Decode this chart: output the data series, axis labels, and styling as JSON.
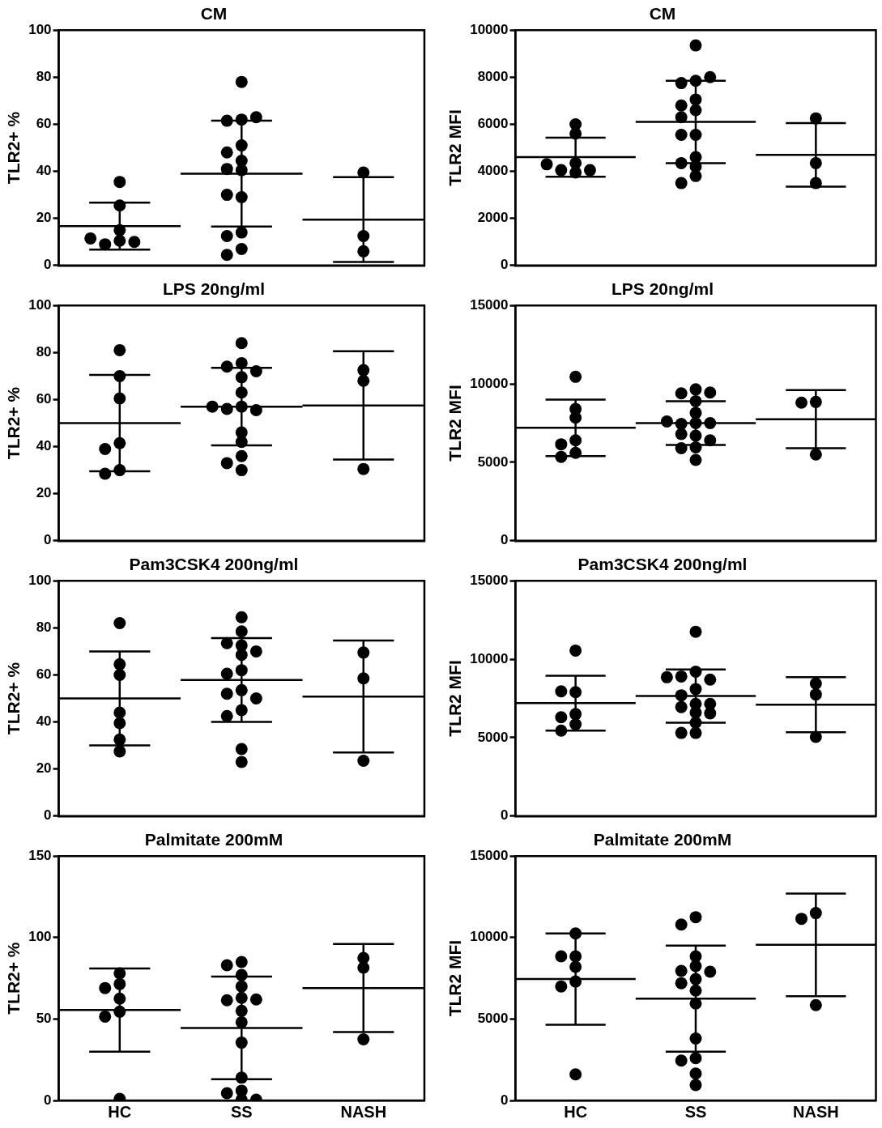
{
  "chart_data": [
    {
      "type": "scatter",
      "title": "CM",
      "ylabel": "TLR2+ %",
      "categories": [
        "HC",
        "SS",
        "NASH"
      ],
      "ylim": [
        0,
        100
      ],
      "yticks": [
        0,
        20,
        40,
        60,
        80,
        100
      ],
      "tick_labels": "y",
      "series": [
        {
          "type": "scatter",
          "color": "#000000",
          "marker": "circle",
          "x": [
            "HC",
            "HC",
            "HC",
            "HC",
            "HC",
            "HC",
            "HC",
            "SS",
            "SS",
            "SS",
            "SS",
            "SS",
            "SS",
            "SS",
            "SS",
            "SS",
            "SS",
            "SS",
            "SS",
            "SS",
            "SS",
            "SS",
            "NASH",
            "NASH",
            "NASH"
          ],
          "values": [
            35.5,
            25.5,
            15,
            10.5,
            9,
            10,
            11.5,
            78,
            62,
            61.5,
            63,
            51,
            48,
            44.5,
            41,
            40.5,
            29,
            30,
            14,
            12.5,
            7,
            4.5,
            39.5,
            12.5,
            6
          ]
        },
        {
          "type": "box",
          "color": "#000000",
          "boxes": [
            {
              "low": 6.7,
              "q1": 16.7,
              "median": 16.7,
              "q3": 16.7,
              "high": 26.7
            },
            {
              "low": 16.5,
              "q1": 39,
              "median": 39,
              "q3": 39,
              "high": 61.5
            },
            {
              "low": 1.5,
              "q1": 19.5,
              "median": 19.5,
              "q3": 19.5,
              "high": 37.5
            }
          ]
        }
      ]
    },
    {
      "type": "scatter",
      "title": "CM",
      "ylabel": "TLR2 MFI",
      "categories": [
        "HC",
        "SS",
        "NASH"
      ],
      "ylim": [
        0,
        10000
      ],
      "yticks": [
        0,
        2000,
        4000,
        6000,
        8000,
        10000
      ],
      "tick_labels": "y",
      "series": [
        {
          "type": "scatter",
          "color": "#000000",
          "marker": "circle",
          "x": [
            "HC",
            "HC",
            "HC",
            "HC",
            "HC",
            "HC",
            "HC",
            "SS",
            "SS",
            "SS",
            "SS",
            "SS",
            "SS",
            "SS",
            "SS",
            "SS",
            "SS",
            "SS",
            "SS",
            "SS",
            "SS",
            "SS",
            "NASH",
            "NASH",
            "NASH"
          ],
          "values": [
            6000,
            5600,
            4350,
            4050,
            3950,
            4050,
            4300,
            9350,
            7850,
            7750,
            8000,
            7050,
            6600,
            6800,
            6300,
            5550,
            5550,
            4600,
            4350,
            4200,
            3800,
            3500,
            6250,
            4350,
            3500
          ]
        },
        {
          "type": "box",
          "color": "#000000",
          "boxes": [
            {
              "low": 3770,
              "q1": 4600,
              "median": 4600,
              "q3": 4600,
              "high": 5430
            },
            {
              "low": 4350,
              "q1": 6100,
              "median": 6100,
              "q3": 6100,
              "high": 7850
            },
            {
              "low": 3350,
              "q1": 4700,
              "median": 4700,
              "q3": 4700,
              "high": 6050
            }
          ]
        }
      ]
    },
    {
      "type": "scatter",
      "title": "LPS 20ng/ml",
      "ylabel": "TLR2+ %",
      "categories": [
        "HC",
        "SS",
        "NASH"
      ],
      "ylim": [
        0,
        100
      ],
      "yticks": [
        0,
        20,
        40,
        60,
        80,
        100
      ],
      "tick_labels": "y",
      "series": [
        {
          "type": "scatter",
          "color": "#000000",
          "marker": "circle",
          "x": [
            "HC",
            "HC",
            "HC",
            "HC",
            "HC",
            "HC",
            "HC",
            "SS",
            "SS",
            "SS",
            "SS",
            "SS",
            "SS",
            "SS",
            "SS",
            "SS",
            "SS",
            "SS",
            "SS",
            "SS",
            "SS",
            "SS",
            "NASH",
            "NASH",
            "NASH"
          ],
          "values": [
            81,
            70,
            60.5,
            41.5,
            39,
            30,
            28.5,
            84,
            75.5,
            74,
            72,
            69.5,
            63,
            57,
            56,
            55.5,
            57,
            46,
            42,
            36,
            33,
            30,
            72.5,
            68,
            30.5
          ]
        },
        {
          "type": "box",
          "color": "#000000",
          "boxes": [
            {
              "low": 29.5,
              "q1": 50,
              "median": 50,
              "q3": 50,
              "high": 70.5
            },
            {
              "low": 40.5,
              "q1": 57,
              "median": 57,
              "q3": 57,
              "high": 73.5
            },
            {
              "low": 34.5,
              "q1": 57.5,
              "median": 57.5,
              "q3": 57.5,
              "high": 80.5
            }
          ]
        }
      ]
    },
    {
      "type": "scatter",
      "title": "LPS 20ng/ml",
      "ylabel": "TLR2 MFI",
      "categories": [
        "HC",
        "SS",
        "NASH"
      ],
      "ylim": [
        0,
        15000
      ],
      "yticks": [
        0,
        5000,
        10000,
        15000
      ],
      "tick_labels": "y",
      "series": [
        {
          "type": "scatter",
          "color": "#000000",
          "marker": "circle",
          "x": [
            "HC",
            "HC",
            "HC",
            "HC",
            "HC",
            "HC",
            "HC",
            "SS",
            "SS",
            "SS",
            "SS",
            "SS",
            "SS",
            "SS",
            "SS",
            "SS",
            "SS",
            "SS",
            "SS",
            "SS",
            "SS",
            "SS",
            "NASH",
            "NASH",
            "NASH"
          ],
          "values": [
            10450,
            8400,
            7850,
            6400,
            6150,
            5600,
            5350,
            9650,
            9400,
            9450,
            8900,
            8150,
            7500,
            7450,
            7500,
            7600,
            6700,
            6800,
            6400,
            5950,
            5900,
            5150,
            8850,
            8800,
            5500
          ]
        },
        {
          "type": "box",
          "color": "#000000",
          "boxes": [
            {
              "low": 5400,
              "q1": 7200,
              "median": 7200,
              "q3": 7200,
              "high": 9000
            },
            {
              "low": 6100,
              "q1": 7500,
              "median": 7500,
              "q3": 7500,
              "high": 8900
            },
            {
              "low": 5900,
              "q1": 7750,
              "median": 7750,
              "q3": 7750,
              "high": 9600
            }
          ]
        }
      ]
    },
    {
      "type": "scatter",
      "title": "Pam3CSK4 200ng/ml",
      "ylabel": "TLR2+ %",
      "categories": [
        "HC",
        "SS",
        "NASH"
      ],
      "ylim": [
        0,
        100
      ],
      "yticks": [
        0,
        20,
        40,
        60,
        80,
        100
      ],
      "tick_labels": "y",
      "series": [
        {
          "type": "scatter",
          "color": "#000000",
          "marker": "circle",
          "x": [
            "HC",
            "HC",
            "HC",
            "HC",
            "HC",
            "HC",
            "HC",
            "SS",
            "SS",
            "SS",
            "SS",
            "SS",
            "SS",
            "SS",
            "SS",
            "SS",
            "SS",
            "SS",
            "SS",
            "SS",
            "SS",
            "SS",
            "NASH",
            "NASH",
            "NASH"
          ],
          "values": [
            82,
            64.5,
            60,
            44,
            39.5,
            32.5,
            27.5,
            84.5,
            78.5,
            72.5,
            73.5,
            70,
            68.5,
            62,
            60.5,
            53.5,
            52,
            50,
            45,
            42.5,
            28.5,
            23,
            69.5,
            58.5,
            23.5
          ]
        },
        {
          "type": "box",
          "color": "#000000",
          "boxes": [
            {
              "low": 30,
              "q1": 50,
              "median": 50,
              "q3": 50,
              "high": 70
            },
            {
              "low": 40,
              "q1": 57.8,
              "median": 57.8,
              "q3": 57.8,
              "high": 75.6
            },
            {
              "low": 27,
              "q1": 50.8,
              "median": 50.8,
              "q3": 50.8,
              "high": 74.6
            }
          ]
        }
      ]
    },
    {
      "type": "scatter",
      "title": "Pam3CSK4 200ng/ml",
      "ylabel": "TLR2 MFI",
      "categories": [
        "HC",
        "SS",
        "NASH"
      ],
      "ylim": [
        0,
        15000
      ],
      "yticks": [
        0,
        5000,
        10000,
        15000
      ],
      "tick_labels": "y",
      "series": [
        {
          "type": "scatter",
          "color": "#000000",
          "marker": "circle",
          "x": [
            "HC",
            "HC",
            "HC",
            "HC",
            "HC",
            "HC",
            "HC",
            "SS",
            "SS",
            "SS",
            "SS",
            "SS",
            "SS",
            "SS",
            "SS",
            "SS",
            "SS",
            "SS",
            "SS",
            "SS",
            "SS",
            "SS",
            "NASH",
            "NASH",
            "NASH"
          ],
          "values": [
            10550,
            7900,
            7950,
            6500,
            6300,
            5850,
            5450,
            11750,
            9200,
            8900,
            8700,
            8850,
            8100,
            7700,
            7150,
            6950,
            7150,
            6600,
            6550,
            5950,
            5300,
            5300,
            8450,
            7750,
            5050
          ]
        },
        {
          "type": "box",
          "color": "#000000",
          "boxes": [
            {
              "low": 5450,
              "q1": 7200,
              "median": 7200,
              "q3": 7200,
              "high": 8950
            },
            {
              "low": 5950,
              "q1": 7650,
              "median": 7650,
              "q3": 7650,
              "high": 9350
            },
            {
              "low": 5350,
              "q1": 7100,
              "median": 7100,
              "q3": 7100,
              "high": 8850
            }
          ]
        }
      ]
    },
    {
      "type": "scatter",
      "title": "Palmitate 200mM",
      "ylabel": "TLR2+ %",
      "categories": [
        "HC",
        "SS",
        "NASH"
      ],
      "ylim": [
        0,
        150
      ],
      "yticks": [
        0,
        50,
        100,
        150
      ],
      "series": [
        {
          "type": "scatter",
          "color": "#000000",
          "marker": "circle",
          "x": [
            "HC",
            "HC",
            "HC",
            "HC",
            "HC",
            "HC",
            "HC",
            "SS",
            "SS",
            "SS",
            "SS",
            "SS",
            "SS",
            "SS",
            "SS",
            "SS",
            "SS",
            "SS",
            "SS",
            "SS",
            "SS",
            "SS",
            "NASH",
            "NASH",
            "NASH"
          ],
          "values": [
            78,
            71.5,
            69,
            62.5,
            54.5,
            51.5,
            1,
            85,
            83,
            77,
            70,
            63,
            61.5,
            62,
            55,
            48,
            35.5,
            14,
            6,
            4.5,
            0.5,
            0.5,
            87.5,
            81.5,
            37.5
          ]
        },
        {
          "type": "box",
          "color": "#000000",
          "boxes": [
            {
              "low": 30,
              "q1": 55.5,
              "median": 55.5,
              "q3": 55.5,
              "high": 81
            },
            {
              "low": 13,
              "q1": 44.5,
              "median": 44.5,
              "q3": 44.5,
              "high": 76
            },
            {
              "low": 42,
              "q1": 69,
              "median": 69,
              "q3": 69,
              "high": 96
            }
          ]
        }
      ]
    },
    {
      "type": "scatter",
      "title": "Palmitate 200mM",
      "ylabel": "TLR2 MFI",
      "categories": [
        "HC",
        "SS",
        "NASH"
      ],
      "ylim": [
        0,
        15000
      ],
      "yticks": [
        0,
        5000,
        10000,
        15000
      ],
      "series": [
        {
          "type": "scatter",
          "color": "#000000",
          "marker": "circle",
          "x": [
            "HC",
            "HC",
            "HC",
            "HC",
            "HC",
            "HC",
            "HC",
            "SS",
            "SS",
            "SS",
            "SS",
            "SS",
            "SS",
            "SS",
            "SS",
            "SS",
            "SS",
            "SS",
            "SS",
            "SS",
            "SS",
            "SS",
            "NASH",
            "NASH",
            "NASH"
          ],
          "values": [
            10250,
            8850,
            8850,
            8200,
            7300,
            7000,
            1600,
            11250,
            10800,
            8850,
            8250,
            7950,
            7900,
            7450,
            7200,
            6750,
            5950,
            3800,
            2600,
            2450,
            1650,
            950,
            11500,
            11150,
            5850
          ]
        },
        {
          "type": "box",
          "color": "#000000",
          "boxes": [
            {
              "low": 4650,
              "q1": 7450,
              "median": 7450,
              "q3": 7450,
              "high": 10250
            },
            {
              "low": 3000,
              "q1": 6250,
              "median": 6250,
              "q3": 6250,
              "high": 9500
            },
            {
              "low": 6400,
              "q1": 9550,
              "median": 9550,
              "q3": 9550,
              "high": 12700
            }
          ]
        }
      ]
    }
  ]
}
